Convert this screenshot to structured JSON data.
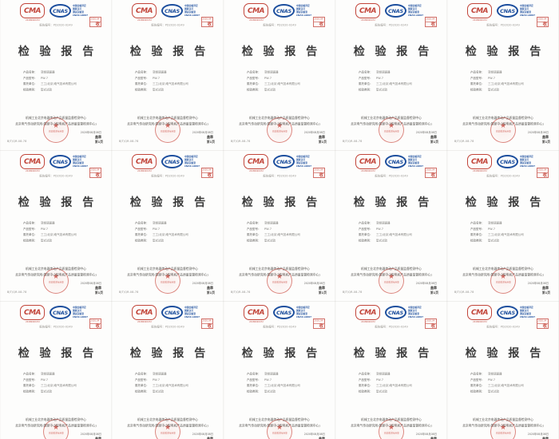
{
  "page": {
    "background": "#f6f4f2"
  },
  "grid": {
    "columns": 5,
    "rows": 3,
    "tile_count": 15
  },
  "certificate": {
    "cma": {
      "label": "CMA",
      "license": "20180020472",
      "color": "#c2453a"
    },
    "cnas": {
      "label": "CNAS",
      "side_lines": [
        "中国合格评定",
        "国家认可",
        "测试实验室",
        "CNAS L0607"
      ],
      "color": "#1d4f9e"
    },
    "received_stamp": {
      "line1": "2020.04",
      "line2": "收"
    },
    "report_no": "报告编号：PD2020-0249",
    "title": "检 验 报 告",
    "fields": [
      {
        "label": "产品名称：",
        "value": "变频调速器"
      },
      {
        "label": "产品型号：",
        "value": "PW-7"
      },
      {
        "label": "委托单位：",
        "value": "三工(北京)电气技术有限公司"
      },
      {
        "label": "检验类别：",
        "value": "型式试验"
      }
    ],
    "org_line1": "机械工业北京电器传动产品质量监督检测中心",
    "org_line2": "北京电气传动研究所(国家中小型电机产品质量监督检测中心)",
    "seal": {
      "star": "★",
      "text": "检验检测专用章",
      "color": "#ca443a"
    },
    "issue_date": "2020年08月08日",
    "issue_note": "盖章",
    "doc_code": "BJT/QR-08-78",
    "page_num": "第1页"
  }
}
